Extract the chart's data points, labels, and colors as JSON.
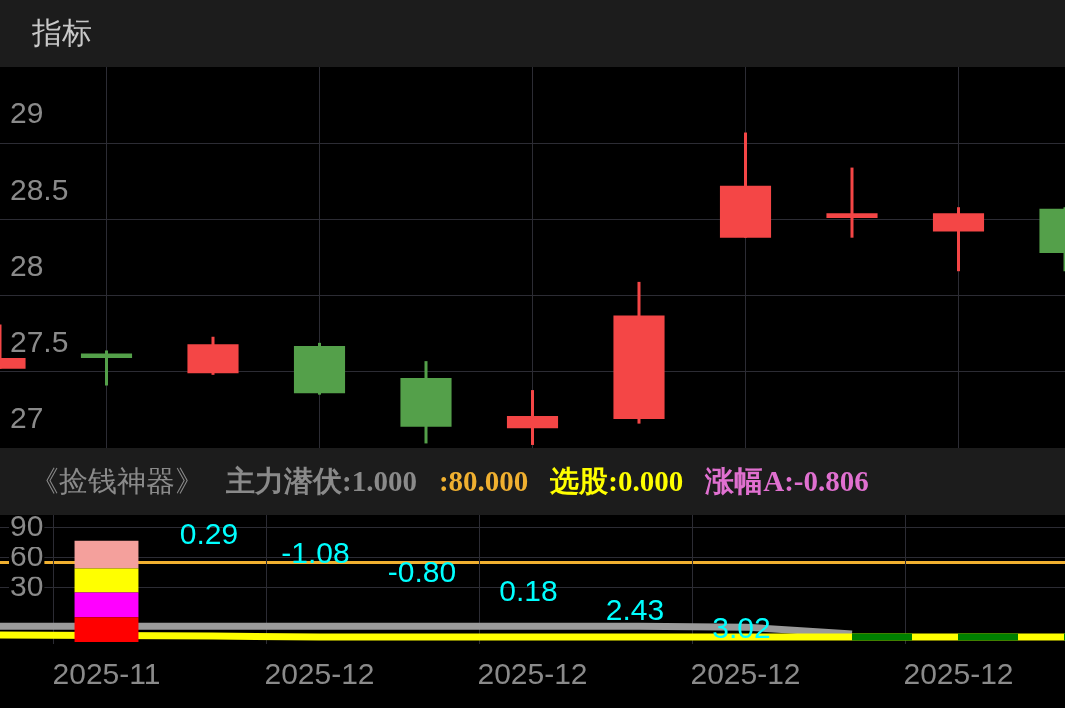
{
  "chart_data": [
    {
      "type": "candlestick",
      "title": "指标",
      "categories": [
        null,
        "2025-11",
        null,
        "2025-12",
        null,
        "2025-12",
        null,
        "2025-12",
        null,
        "2025-12",
        null
      ],
      "ohlc": [
        [
          27.52,
          27.81,
          27.52,
          27.59
        ],
        [
          27.62,
          27.64,
          27.41,
          27.59
        ],
        [
          27.49,
          27.73,
          27.48,
          27.68
        ],
        [
          27.67,
          27.69,
          27.35,
          27.36
        ],
        [
          27.46,
          27.57,
          27.03,
          27.14
        ],
        [
          27.13,
          27.38,
          27.02,
          27.21
        ],
        [
          27.19,
          28.09,
          27.16,
          27.87
        ],
        [
          28.38,
          29.07,
          28.38,
          28.72
        ],
        [
          28.51,
          28.84,
          28.38,
          28.54
        ],
        [
          28.42,
          28.58,
          28.16,
          28.54
        ],
        [
          28.57,
          28.58,
          28.16,
          28.28
        ]
      ],
      "colors": [
        "#f44646",
        "#54a04a",
        "#f44646",
        "#54a04a",
        "#54a04a",
        "#f44646",
        "#f44646",
        "#f44646",
        "#f44646",
        "#f44646",
        "#54a04a"
      ],
      "ylim": [
        27,
        29.5
      ],
      "yticks": [
        27,
        27.5,
        28,
        28.5,
        29
      ],
      "grid": true,
      "tick_labels": "y"
    },
    {
      "type": "bar",
      "title": "《捡钱神器》",
      "stacked": true,
      "categories": [
        null,
        "2025-11",
        null,
        "2025-12",
        null,
        "2025-12",
        null,
        "2025-12",
        null,
        "2025-12",
        null
      ],
      "series": [
        {
          "color": "#ff0000",
          "values": [
            null,
            -25,
            null,
            null,
            null,
            null,
            null,
            null,
            null,
            null,
            null
          ]
        },
        {
          "color": "#ff00ff",
          "values": [
            null,
            25,
            null,
            null,
            null,
            null,
            null,
            null,
            null,
            null,
            null
          ]
        },
        {
          "color": "#ffff00",
          "values": [
            null,
            24,
            null,
            null,
            null,
            null,
            null,
            null,
            null,
            null,
            null
          ]
        },
        {
          "color": "#f4a09c",
          "values": [
            null,
            28,
            null,
            null,
            null,
            null,
            null,
            null,
            null,
            null,
            null
          ]
        },
        {
          "type": "line",
          "color": "#9a9a9a",
          "values": [
            -9,
            null,
            -9,
            -9,
            -9,
            -9,
            -9,
            -10,
            -17,
            null,
            null
          ]
        },
        {
          "type": "line",
          "color": "#ffff00",
          "values": [
            -18,
            null,
            -19,
            -20,
            -20,
            -20,
            -20,
            -20,
            -20,
            -20,
            -20
          ]
        },
        {
          "type": "line",
          "color": "#008000",
          "line_style": "dashed",
          "values": [
            null,
            null,
            null,
            null,
            null,
            null,
            null,
            null,
            -20,
            -20,
            -20
          ]
        }
      ],
      "ylim": [
        -27,
        103
      ],
      "yticks": [
        30,
        60,
        90
      ],
      "grid": true,
      "ref_lines": [
        {
          "axis": "y",
          "value": 56,
          "color": "#f0b030"
        }
      ],
      "annotations": [
        "主力潜伏:1.000",
        ":80.000",
        "选股:0.000",
        "涨幅A:-0.806",
        "0.29",
        "-1.08",
        "-0.80",
        "0.18",
        "2.43",
        "3.02"
      ]
    }
  ]
}
